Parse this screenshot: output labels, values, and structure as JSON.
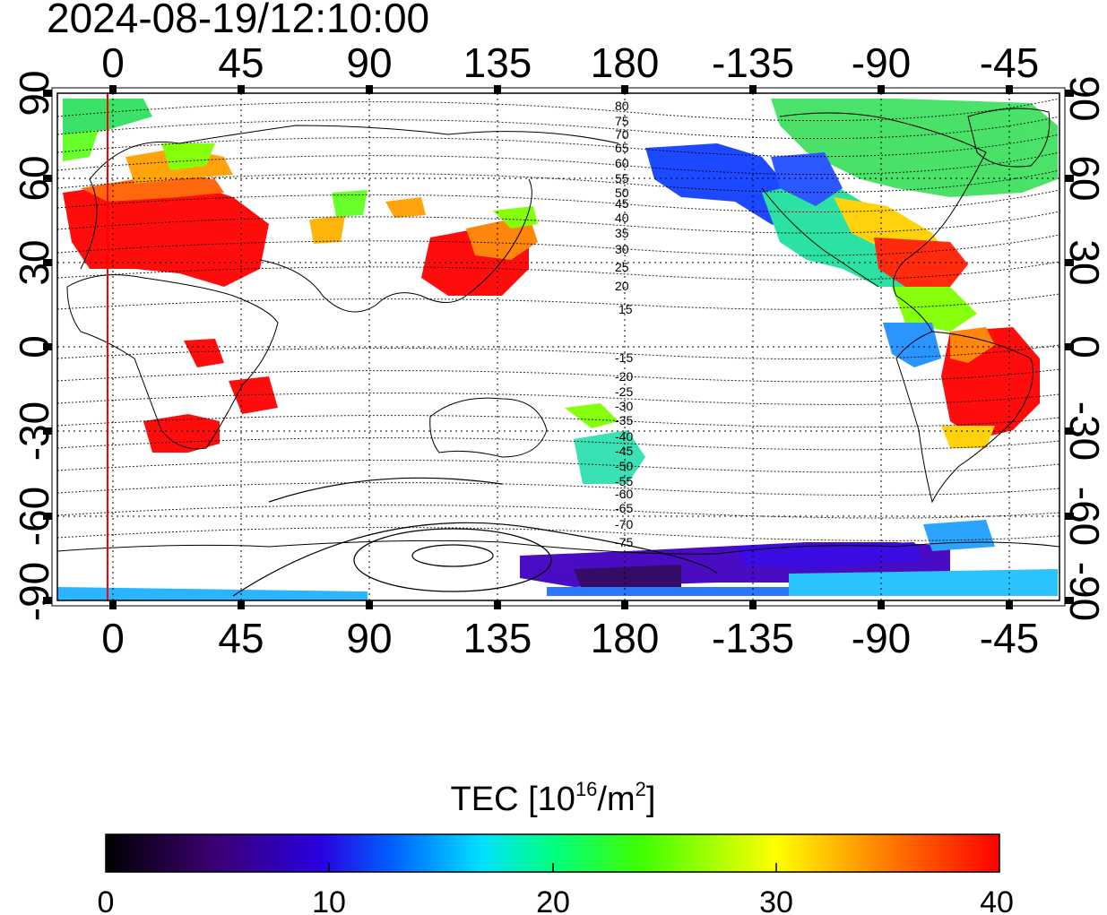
{
  "header": {
    "timestamp": "2024-08-19/12:10:00"
  },
  "map": {
    "longitude_ticks": [
      "0",
      "45",
      "90",
      "135",
      "180",
      "-135",
      "-90",
      "-45"
    ],
    "latitude_ticks_left": [
      "90",
      "60",
      "30",
      "0",
      "-30",
      "-60",
      "-90"
    ],
    "latitude_ticks_right": [
      "90",
      "60",
      "30",
      "0",
      "-30",
      "-60",
      "-90"
    ],
    "magnetic_latitude_labels_north": [
      "80",
      "75",
      "70",
      "65",
      "60",
      "55",
      "50",
      "45",
      "40",
      "35",
      "30",
      "25",
      "20",
      "15"
    ],
    "magnetic_latitude_labels_south": [
      "-15",
      "-20",
      "-25",
      "-30",
      "-35",
      "-40",
      "-45",
      "-50",
      "-55",
      "-60",
      "-65",
      "-70",
      "-75"
    ],
    "terminator_color": "#ff0000"
  },
  "colorbar": {
    "title_main": "TEC  [10",
    "title_exp1": "16",
    "title_mid": "/m",
    "title_exp2": "2",
    "title_end": "]",
    "min": 0,
    "max": 40,
    "tick_labels": [
      "0",
      "10",
      "20",
      "30",
      "40"
    ],
    "colors": [
      "#000000",
      "#3a0070",
      "#2a00e0",
      "#0060ff",
      "#00e0ff",
      "#00ff80",
      "#40ff00",
      "#ffff00",
      "#ff8000",
      "#ff0000"
    ]
  }
}
